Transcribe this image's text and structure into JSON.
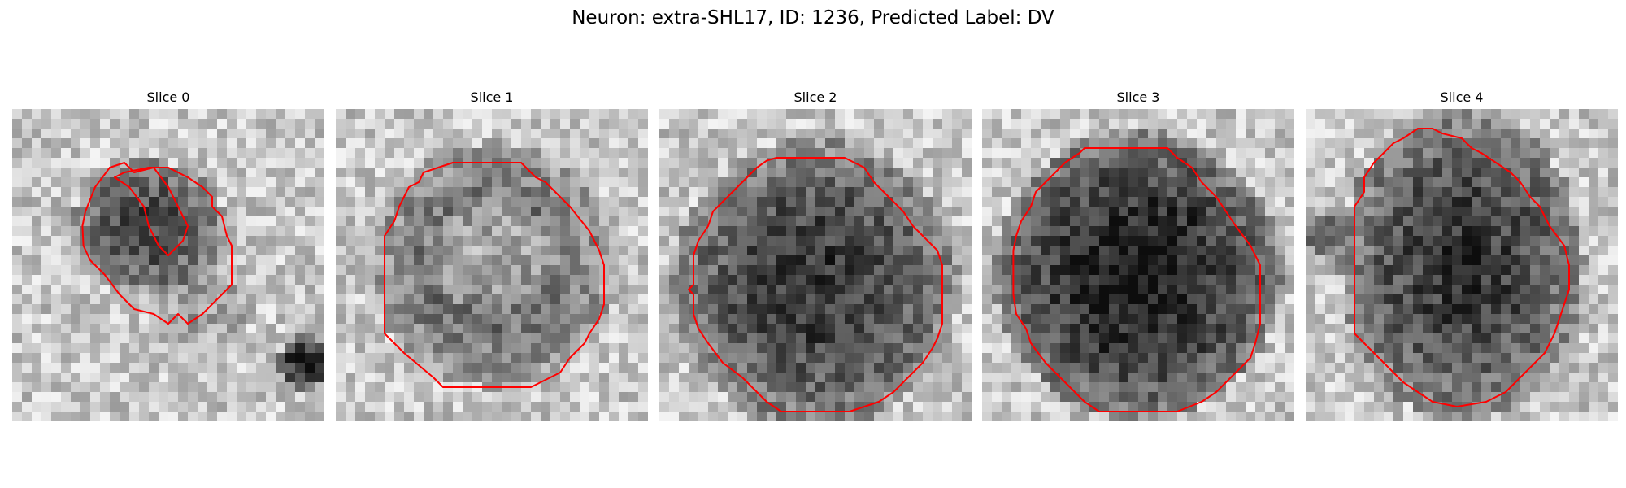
{
  "figure": {
    "title": "Neuron: extra-SHL17, ID: 1236, Predicted Label: DV"
  },
  "colors": {
    "contour": "#ff0000",
    "background": "#ffffff"
  },
  "panels": [
    {
      "title": "Slice 0"
    },
    {
      "title": "Slice 1"
    },
    {
      "title": "Slice 2"
    },
    {
      "title": "Slice 3"
    },
    {
      "title": "Slice 4"
    }
  ]
}
